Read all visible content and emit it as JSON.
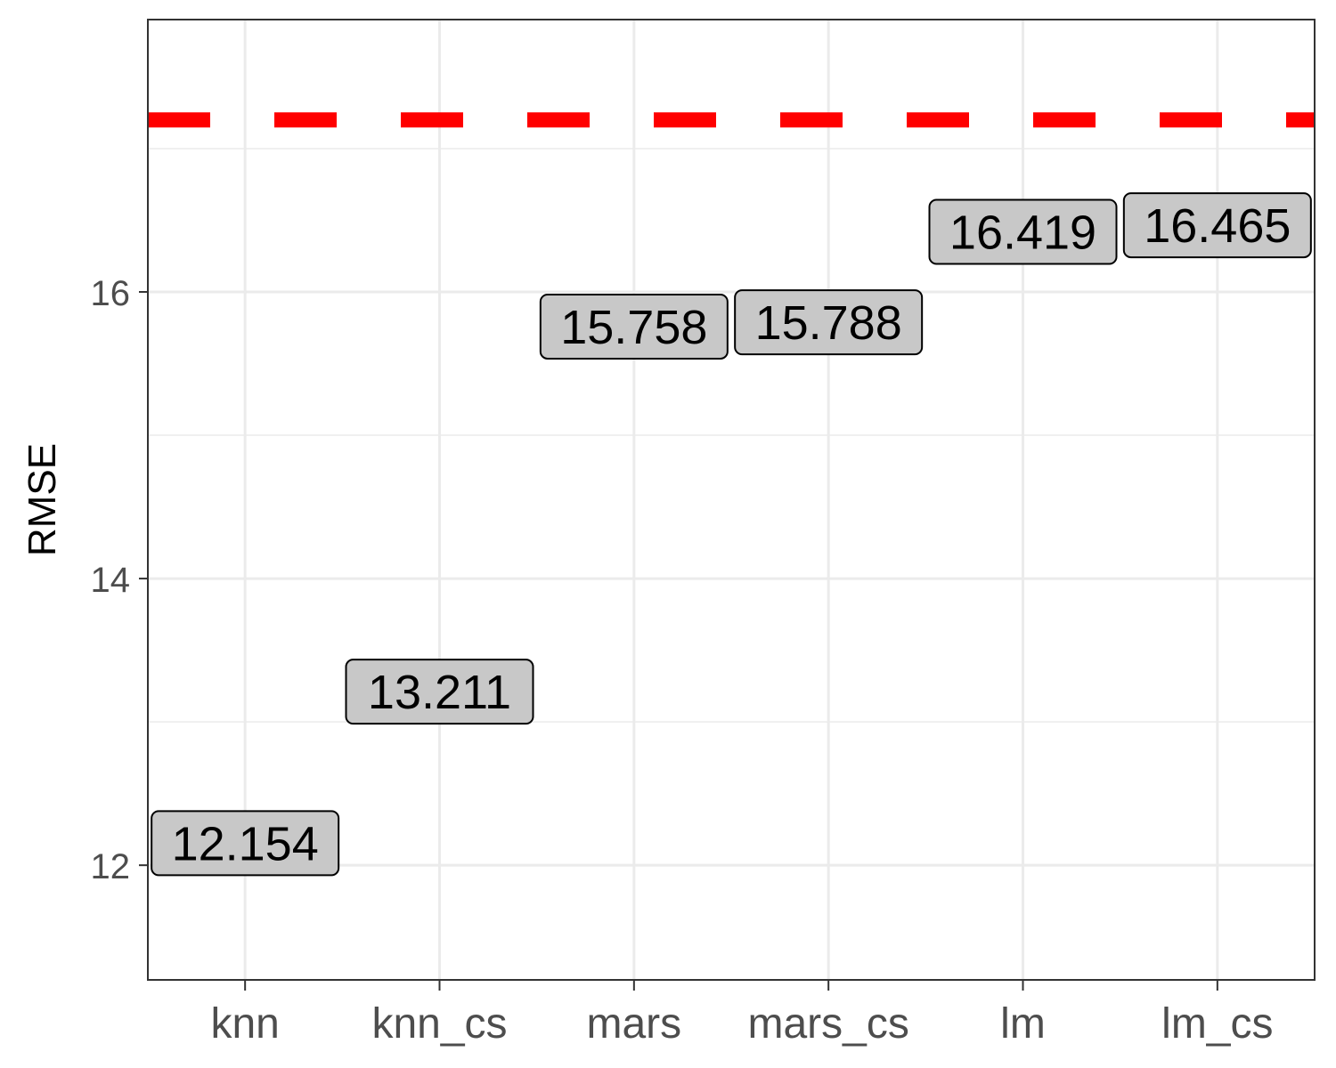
{
  "chart_data": {
    "type": "scatter",
    "title": "",
    "xlabel": "",
    "ylabel": "RMSE",
    "categories": [
      "knn",
      "knn_cs",
      "mars",
      "mars_cs",
      "lm",
      "lm_cs"
    ],
    "values": [
      12.154,
      13.211,
      15.758,
      15.788,
      16.419,
      16.465
    ],
    "data_labels": [
      "12.154",
      "13.211",
      "15.758",
      "15.788",
      "16.419",
      "16.465"
    ],
    "y_ticks": [
      12,
      14,
      16
    ],
    "y_tick_labels": [
      "12",
      "14",
      "16"
    ],
    "ylim": [
      11.2,
      17.9
    ],
    "reference_line": {
      "y": 17.2,
      "style": "dashed",
      "color": "#ff0000"
    },
    "grid": true,
    "legend": "none",
    "label_fill": "#c8c8c8"
  }
}
